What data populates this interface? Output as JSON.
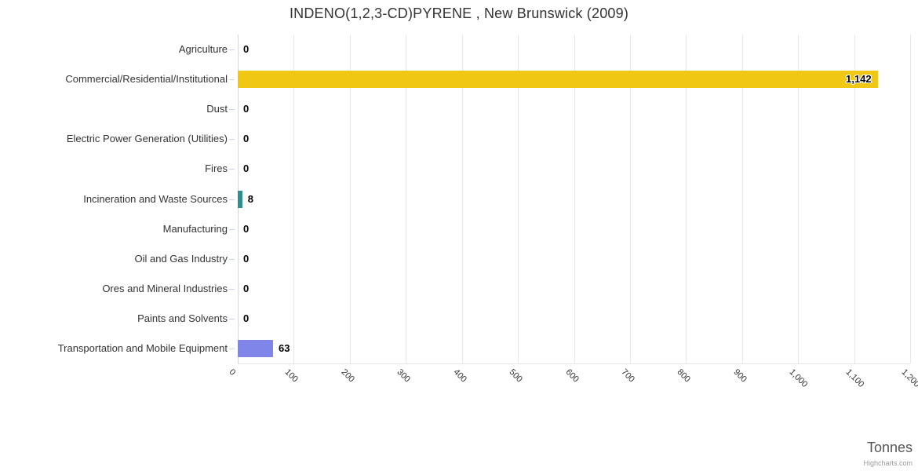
{
  "title": "INDENO(1,2,3-CD)PYRENE , New Brunswick (2009)",
  "credits": "Highcharts.com",
  "chart_data": {
    "type": "bar",
    "orientation": "horizontal",
    "title": "INDENO(1,2,3-CD)PYRENE , New Brunswick (2009)",
    "categories": [
      "Agriculture",
      "Commercial/Residential/Institutional",
      "Dust",
      "Electric Power Generation (Utilities)",
      "Fires",
      "Incineration and Waste Sources",
      "Manufacturing",
      "Oil and Gas Industry",
      "Ores and Mineral Industries",
      "Paints and Solvents",
      "Transportation and Mobile Equipment"
    ],
    "values": [
      0,
      1142,
      0,
      0,
      0,
      8,
      0,
      0,
      0,
      0,
      63
    ],
    "value_labels": [
      "0",
      "1,142",
      "0",
      "0",
      "0",
      "8",
      "0",
      "0",
      "0",
      "0",
      "63"
    ],
    "bar_colors": [
      null,
      "#f0c713",
      null,
      null,
      null,
      "#2b908f",
      null,
      null,
      null,
      null,
      "#8085e9"
    ],
    "xlabel": "Tonnes",
    "xlim": [
      0,
      1200
    ],
    "xticks": [
      0,
      100,
      200,
      300,
      400,
      500,
      600,
      700,
      800,
      900,
      1000,
      1100,
      1200
    ],
    "xtick_labels": [
      "0",
      "100",
      "200",
      "300",
      "400",
      "500",
      "600",
      "700",
      "800",
      "900",
      "1,000",
      "1,100",
      "1,200"
    ],
    "grid": true,
    "legend": false,
    "colors": {
      "grid": "#e6e6e6",
      "axis": "#ccd6eb",
      "title_text": "#333333",
      "category_text": "#333333",
      "value_text": "#000000",
      "axis_title_text": "#555555",
      "credits_text": "#999999"
    }
  }
}
